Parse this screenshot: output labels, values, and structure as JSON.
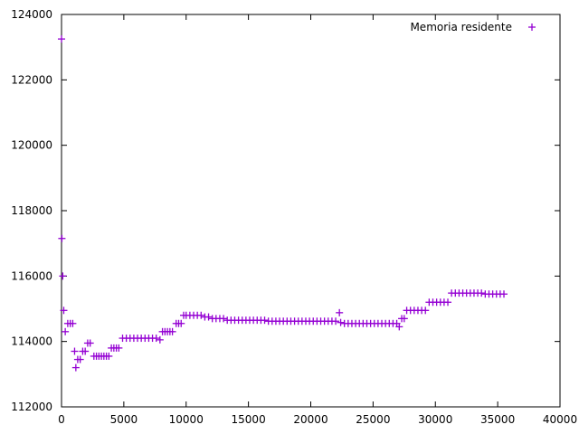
{
  "chart_data": {
    "type": "scatter",
    "title": "",
    "xlabel": "",
    "ylabel": "",
    "xlim": [
      0,
      40000
    ],
    "ylim": [
      112000,
      124000
    ],
    "x_ticks": [
      0,
      5000,
      10000,
      15000,
      20000,
      25000,
      30000,
      35000,
      40000
    ],
    "y_ticks": [
      112000,
      114000,
      116000,
      118000,
      120000,
      122000,
      124000
    ],
    "grid": false,
    "legend_position": "top-right",
    "series": [
      {
        "name": "Memoria residente",
        "color": "#9400d3",
        "marker": "plus",
        "points": [
          [
            0,
            123250
          ],
          [
            30,
            117150
          ],
          [
            100,
            116000
          ],
          [
            180,
            114950
          ],
          [
            300,
            114300
          ],
          [
            500,
            114550
          ],
          [
            700,
            114550
          ],
          [
            900,
            114550
          ],
          [
            1050,
            113700
          ],
          [
            1150,
            113200
          ],
          [
            1300,
            113450
          ],
          [
            1500,
            113450
          ],
          [
            1700,
            113700
          ],
          [
            1900,
            113700
          ],
          [
            2100,
            113950
          ],
          [
            2300,
            113950
          ],
          [
            2600,
            113550
          ],
          [
            2800,
            113550
          ],
          [
            3000,
            113550
          ],
          [
            3200,
            113550
          ],
          [
            3400,
            113550
          ],
          [
            3600,
            113550
          ],
          [
            3800,
            113550
          ],
          [
            4000,
            113800
          ],
          [
            4200,
            113800
          ],
          [
            4400,
            113800
          ],
          [
            4600,
            113800
          ],
          [
            4900,
            114100
          ],
          [
            5200,
            114100
          ],
          [
            5500,
            114100
          ],
          [
            5800,
            114100
          ],
          [
            6100,
            114100
          ],
          [
            6400,
            114100
          ],
          [
            6700,
            114100
          ],
          [
            7000,
            114100
          ],
          [
            7300,
            114100
          ],
          [
            7600,
            114100
          ],
          [
            7900,
            114050
          ],
          [
            8100,
            114300
          ],
          [
            8300,
            114300
          ],
          [
            8500,
            114300
          ],
          [
            8700,
            114300
          ],
          [
            8900,
            114300
          ],
          [
            9200,
            114550
          ],
          [
            9400,
            114550
          ],
          [
            9600,
            114550
          ],
          [
            9800,
            114800
          ],
          [
            10000,
            114800
          ],
          [
            10300,
            114800
          ],
          [
            10600,
            114800
          ],
          [
            10900,
            114800
          ],
          [
            11200,
            114800
          ],
          [
            11500,
            114750
          ],
          [
            11800,
            114750
          ],
          [
            12100,
            114700
          ],
          [
            12400,
            114700
          ],
          [
            12700,
            114700
          ],
          [
            13000,
            114700
          ],
          [
            13300,
            114650
          ],
          [
            13600,
            114650
          ],
          [
            13900,
            114650
          ],
          [
            14200,
            114650
          ],
          [
            14500,
            114650
          ],
          [
            14800,
            114650
          ],
          [
            15100,
            114650
          ],
          [
            15400,
            114650
          ],
          [
            15700,
            114650
          ],
          [
            16000,
            114650
          ],
          [
            16300,
            114650
          ],
          [
            16600,
            114620
          ],
          [
            16900,
            114620
          ],
          [
            17200,
            114620
          ],
          [
            17500,
            114620
          ],
          [
            17800,
            114620
          ],
          [
            18100,
            114620
          ],
          [
            18400,
            114620
          ],
          [
            18700,
            114620
          ],
          [
            19000,
            114620
          ],
          [
            19300,
            114620
          ],
          [
            19600,
            114620
          ],
          [
            19900,
            114620
          ],
          [
            20200,
            114620
          ],
          [
            20500,
            114620
          ],
          [
            20800,
            114620
          ],
          [
            21100,
            114620
          ],
          [
            21400,
            114620
          ],
          [
            21700,
            114620
          ],
          [
            22000,
            114620
          ],
          [
            22300,
            114880
          ],
          [
            22400,
            114580
          ],
          [
            22700,
            114550
          ],
          [
            23000,
            114550
          ],
          [
            23300,
            114550
          ],
          [
            23600,
            114550
          ],
          [
            23900,
            114550
          ],
          [
            24200,
            114550
          ],
          [
            24500,
            114550
          ],
          [
            24800,
            114550
          ],
          [
            25100,
            114550
          ],
          [
            25400,
            114550
          ],
          [
            25700,
            114550
          ],
          [
            26000,
            114550
          ],
          [
            26300,
            114550
          ],
          [
            26600,
            114550
          ],
          [
            26900,
            114550
          ],
          [
            27100,
            114450
          ],
          [
            27300,
            114700
          ],
          [
            27500,
            114700
          ],
          [
            27700,
            114950
          ],
          [
            28000,
            114950
          ],
          [
            28300,
            114950
          ],
          [
            28600,
            114950
          ],
          [
            28900,
            114950
          ],
          [
            29200,
            114950
          ],
          [
            29500,
            115200
          ],
          [
            29800,
            115200
          ],
          [
            30100,
            115200
          ],
          [
            30400,
            115200
          ],
          [
            30700,
            115200
          ],
          [
            31000,
            115200
          ],
          [
            31300,
            115480
          ],
          [
            31600,
            115480
          ],
          [
            31900,
            115480
          ],
          [
            32200,
            115480
          ],
          [
            32500,
            115480
          ],
          [
            32800,
            115480
          ],
          [
            33100,
            115480
          ],
          [
            33400,
            115480
          ],
          [
            33700,
            115480
          ],
          [
            34000,
            115450
          ],
          [
            34300,
            115450
          ],
          [
            34600,
            115450
          ],
          [
            34900,
            115450
          ],
          [
            35200,
            115450
          ],
          [
            35500,
            115450
          ]
        ]
      }
    ]
  }
}
